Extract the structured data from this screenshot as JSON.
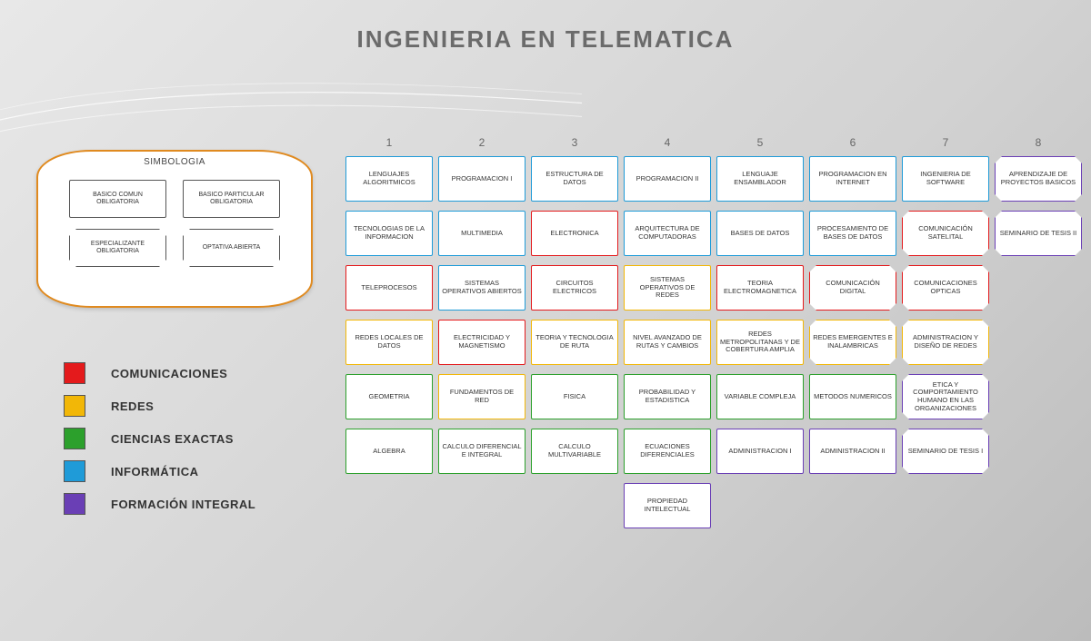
{
  "title": "INGENIERIA EN TELEMATICA",
  "legend_title": "SIMBOLOGIA",
  "symbology": [
    {
      "label": "BASICO COMUN OBLIGATORIA",
      "shape": "rect"
    },
    {
      "label": "BASICO PARTICULAR OBLIGATORIA",
      "shape": "rect"
    },
    {
      "label": "ESPECIALIZANTE OBLIGATORIA",
      "shape": "oct"
    },
    {
      "label": "OPTATIVA ABIERTA",
      "shape": "oct"
    }
  ],
  "categories": [
    {
      "key": "com",
      "label": "COMUNICACIONES",
      "color": "#e41a1c"
    },
    {
      "key": "red",
      "label": "REDES",
      "color": "#f2b707"
    },
    {
      "key": "exa",
      "label": "CIENCIAS EXACTAS",
      "color": "#2ca02c"
    },
    {
      "key": "inf",
      "label": "INFORMÁTICA",
      "color": "#1f9bd8"
    },
    {
      "key": "for",
      "label": "FORMACIÓN INTEGRAL",
      "color": "#6a3fb5"
    }
  ],
  "semesters": [
    "1",
    "2",
    "3",
    "4",
    "5",
    "6",
    "7",
    "8"
  ],
  "grid": [
    [
      {
        "label": "LENGUAJES ALGORITMICOS",
        "cat": "inf",
        "shape": "rect"
      },
      {
        "label": "PROGRAMACION I",
        "cat": "inf",
        "shape": "rect"
      },
      {
        "label": "ESTRUCTURA DE DATOS",
        "cat": "inf",
        "shape": "rect"
      },
      {
        "label": "PROGRAMACION II",
        "cat": "inf",
        "shape": "rect"
      },
      {
        "label": "LENGUAJE ENSAMBLADOR",
        "cat": "inf",
        "shape": "rect"
      },
      {
        "label": "PROGRAMACION EN INTERNET",
        "cat": "inf",
        "shape": "rect"
      },
      {
        "label": "INGENIERIA DE SOFTWARE",
        "cat": "inf",
        "shape": "rect"
      },
      {
        "label": "APRENDIZAJE DE PROYECTOS BASICOS",
        "cat": "for",
        "shape": "oct"
      }
    ],
    [
      {
        "label": "TECNOLOGIAS DE LA INFORMACION",
        "cat": "inf",
        "shape": "rect"
      },
      {
        "label": "MULTIMEDIA",
        "cat": "inf",
        "shape": "rect"
      },
      {
        "label": "ELECTRONICA",
        "cat": "com",
        "shape": "rect"
      },
      {
        "label": "ARQUITECTURA DE COMPUTADORAS",
        "cat": "inf",
        "shape": "rect"
      },
      {
        "label": "BASES DE DATOS",
        "cat": "inf",
        "shape": "rect"
      },
      {
        "label": "PROCESAMIENTO DE BASES DE DATOS",
        "cat": "inf",
        "shape": "rect"
      },
      {
        "label": "COMUNICACIÓN SATELITAL",
        "cat": "com",
        "shape": "oct"
      },
      {
        "label": "SEMINARIO DE TESIS II",
        "cat": "for",
        "shape": "oct"
      }
    ],
    [
      {
        "label": "TELEPROCESOS",
        "cat": "com",
        "shape": "rect"
      },
      {
        "label": "SISTEMAS OPERATIVOS ABIERTOS",
        "cat": "inf",
        "shape": "rect"
      },
      {
        "label": "CIRCUITOS ELECTRICOS",
        "cat": "com",
        "shape": "rect"
      },
      {
        "label": "SISTEMAS OPERATIVOS DE REDES",
        "cat": "red",
        "shape": "rect"
      },
      {
        "label": "TEORIA ELECTROMAGNETICA",
        "cat": "com",
        "shape": "rect"
      },
      {
        "label": "COMUNICACIÓN DIGITAL",
        "cat": "com",
        "shape": "oct"
      },
      {
        "label": "COMUNICACIONES OPTICAS",
        "cat": "com",
        "shape": "oct"
      },
      {
        "label": "",
        "cat": "",
        "shape": "empty"
      }
    ],
    [
      {
        "label": "REDES LOCALES DE DATOS",
        "cat": "red",
        "shape": "rect"
      },
      {
        "label": "ELECTRICIDAD Y MAGNETISMO",
        "cat": "com",
        "shape": "rect"
      },
      {
        "label": "TEORIA Y TECNOLOGIA DE RUTA",
        "cat": "red",
        "shape": "rect"
      },
      {
        "label": "NIVEL AVANZADO DE RUTAS Y CAMBIOS",
        "cat": "red",
        "shape": "rect"
      },
      {
        "label": "REDES METROPOLITANAS Y DE COBERTURA AMPLIA",
        "cat": "red",
        "shape": "rect"
      },
      {
        "label": "REDES EMERGENTES E INALAMBRICAS",
        "cat": "red",
        "shape": "oct"
      },
      {
        "label": "ADMINISTRACION Y DISEÑO DE REDES",
        "cat": "red",
        "shape": "oct"
      },
      {
        "label": "",
        "cat": "",
        "shape": "empty"
      }
    ],
    [
      {
        "label": "GEOMETRIA",
        "cat": "exa",
        "shape": "rect"
      },
      {
        "label": "FUNDAMENTOS DE RED",
        "cat": "red",
        "shape": "rect"
      },
      {
        "label": "FISICA",
        "cat": "exa",
        "shape": "rect"
      },
      {
        "label": "PROBABILIDAD Y ESTADISTICA",
        "cat": "exa",
        "shape": "rect"
      },
      {
        "label": "VARIABLE COMPLEJA",
        "cat": "exa",
        "shape": "rect"
      },
      {
        "label": "METODOS NUMERICOS",
        "cat": "exa",
        "shape": "rect"
      },
      {
        "label": "ETICA Y COMPORTAMIENTO HUMANO EN LAS ORGANIZACIONES",
        "cat": "for",
        "shape": "oct"
      },
      {
        "label": "",
        "cat": "",
        "shape": "empty"
      }
    ],
    [
      {
        "label": "ALGEBRA",
        "cat": "exa",
        "shape": "rect"
      },
      {
        "label": "CALCULO DIFERENCIAL E INTEGRAL",
        "cat": "exa",
        "shape": "rect"
      },
      {
        "label": "CALCULO MULTIVARIABLE",
        "cat": "exa",
        "shape": "rect"
      },
      {
        "label": "ECUACIONES DIFERENCIALES",
        "cat": "exa",
        "shape": "rect"
      },
      {
        "label": "ADMINISTRACION I",
        "cat": "for",
        "shape": "rect"
      },
      {
        "label": "ADMINISTRACION II",
        "cat": "for",
        "shape": "rect"
      },
      {
        "label": "SEMINARIO DE TESIS I",
        "cat": "for",
        "shape": "oct"
      },
      {
        "label": "",
        "cat": "",
        "shape": "empty"
      }
    ],
    [
      {
        "label": "",
        "cat": "",
        "shape": "empty"
      },
      {
        "label": "",
        "cat": "",
        "shape": "empty"
      },
      {
        "label": "",
        "cat": "",
        "shape": "empty"
      },
      {
        "label": "PROPIEDAD INTELECTUAL",
        "cat": "for",
        "shape": "rect"
      },
      {
        "label": "",
        "cat": "",
        "shape": "empty"
      },
      {
        "label": "",
        "cat": "",
        "shape": "empty"
      },
      {
        "label": "",
        "cat": "",
        "shape": "empty"
      },
      {
        "label": "",
        "cat": "",
        "shape": "empty"
      }
    ]
  ]
}
